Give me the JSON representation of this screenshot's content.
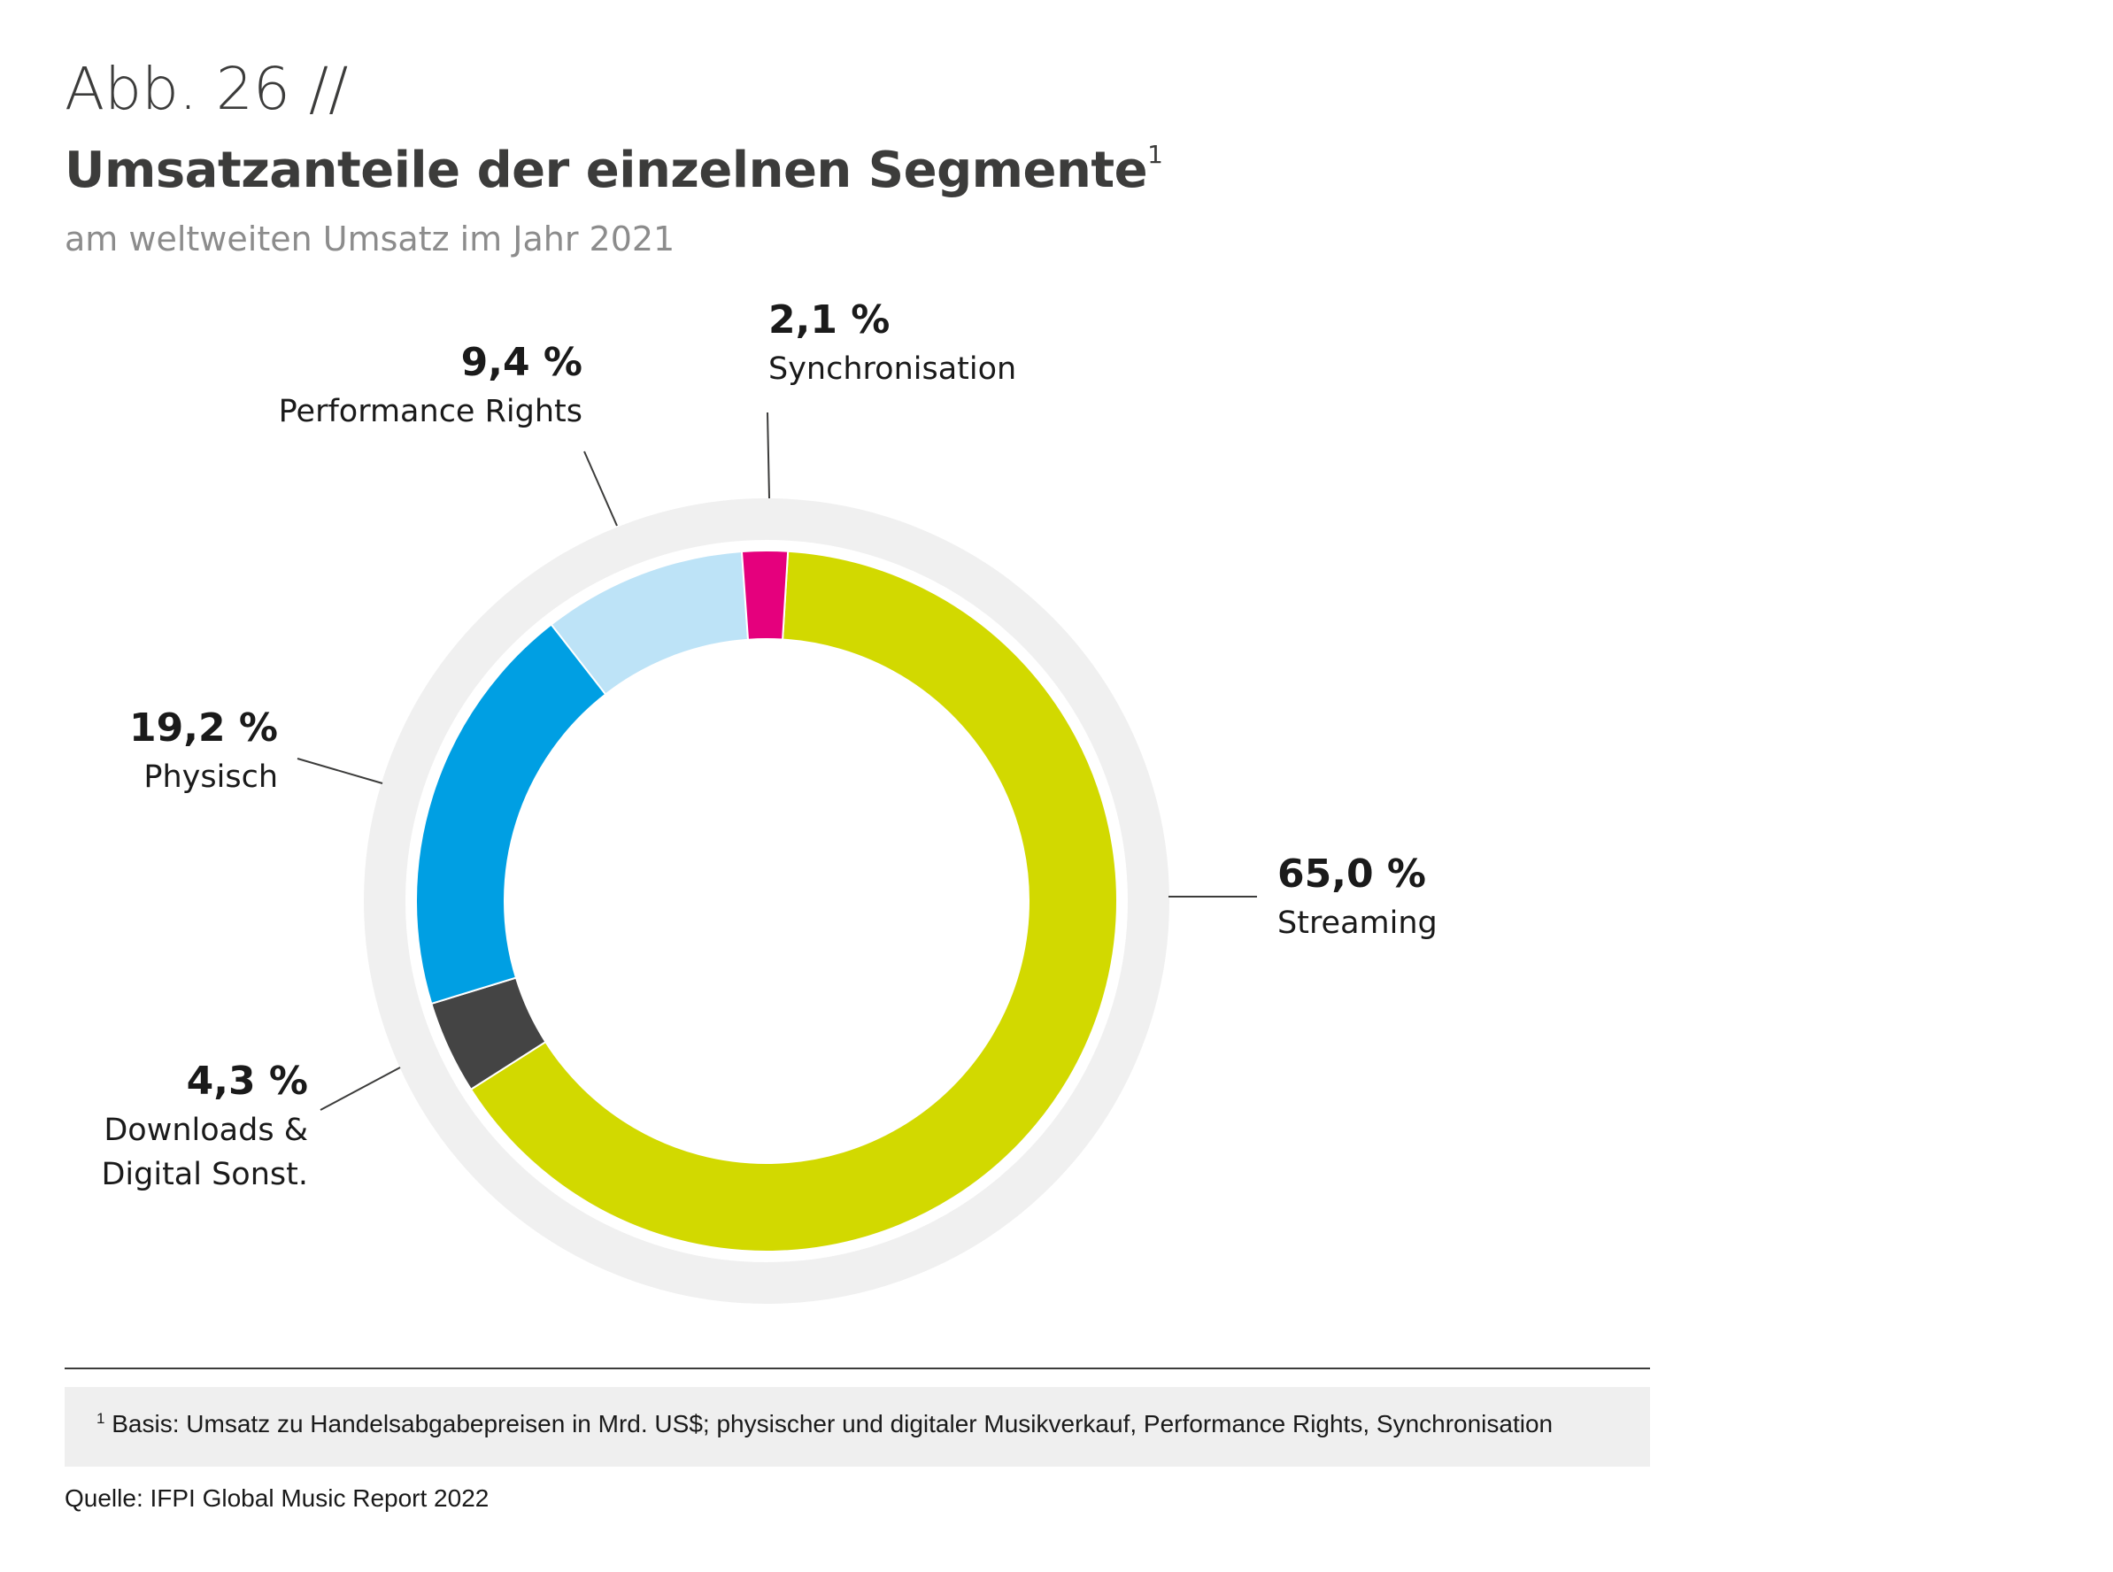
{
  "header": {
    "figure_number": "Abb. 26 //",
    "title": "Umsatzanteile der einzelnen Segmente",
    "title_footnote_mark": "1",
    "subtitle": "am weltweiten Umsatz im Jahr 2021"
  },
  "chart_data": {
    "type": "pie",
    "variant": "donut",
    "title": "Umsatzanteile der einzelnen Segmente",
    "subtitle": "am weltweiten Umsatz im Jahr 2021",
    "unit": "%",
    "slices": [
      {
        "name": "Streaming",
        "value": 65.0,
        "label": "65,0 %",
        "color": "#d2d900",
        "label_lines": [
          "Streaming"
        ]
      },
      {
        "name": "Downloads & Digital Sonst.",
        "value": 4.3,
        "label": "4,3 %",
        "color": "#444444",
        "label_lines": [
          "Downloads &",
          "Digital Sonst."
        ]
      },
      {
        "name": "Physisch",
        "value": 19.2,
        "label": "19,2 %",
        "color": "#009fe3",
        "label_lines": [
          "Physisch"
        ]
      },
      {
        "name": "Performance Rights",
        "value": 9.4,
        "label": "9,4 %",
        "color": "#bde3f7",
        "label_lines": [
          "Performance Rights"
        ]
      },
      {
        "name": "Synchronisation",
        "value": 2.1,
        "label": "2,1 %",
        "color": "#e5007d",
        "label_lines": [
          "Synchronisation"
        ]
      }
    ],
    "ring_background_color": "#f0f0f0",
    "direction": "clockwise from top"
  },
  "footer": {
    "footnote_mark": "1",
    "footnote": "Basis: Umsatz zu Handelsabgabepreisen in Mrd. US$; physischer und digitaler Musikverkauf, Performance Rights, Synchronisation",
    "source": "Quelle: IFPI Global Music Report 2022"
  }
}
